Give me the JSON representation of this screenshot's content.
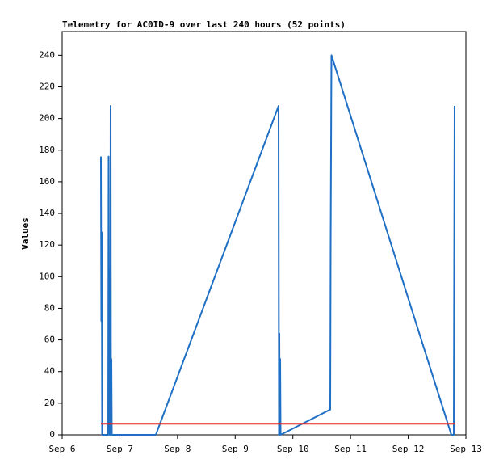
{
  "chart_data": {
    "type": "line",
    "title": "Telemetry for AC0ID-9 over last 240 hours (52 points)",
    "y_label": "Values",
    "x": [],
    "series": [
      {
        "color": "#1f6fc4",
        "x": [
          0.672,
          0.679,
          0.686,
          0.693,
          0.798,
          0.805,
          0.812,
          0.826,
          0.833,
          0.84,
          0.847,
          0.854,
          0.861,
          1.624,
          3.752,
          3.759,
          3.766,
          3.773,
          3.78,
          3.787,
          4.648,
          4.655,
          4.669,
          6.748,
          6.79,
          6.804
        ],
        "values": [
          176,
          72,
          128,
          0,
          0,
          176,
          0,
          104,
          0,
          208,
          0,
          48,
          0,
          0,
          208,
          0,
          64,
          0,
          48,
          0,
          16,
          120,
          240,
          0,
          0,
          208
        ]
      },
      {
        "color": "#e8231f",
        "x": [
          0.672,
          6.804
        ],
        "values": [
          7,
          7
        ]
      }
    ],
    "xlim": [
      0,
      7
    ],
    "xticks": [
      {
        "value": 0,
        "label": "Sep 6"
      },
      {
        "value": 1,
        "label": "Sep 7"
      },
      {
        "value": 2,
        "label": "Sep 8"
      },
      {
        "value": 3,
        "label": "Sep 9"
      },
      {
        "value": 4,
        "label": "Sep 10"
      },
      {
        "value": 5,
        "label": "Sep 11"
      },
      {
        "value": 6,
        "label": "Sep 12"
      },
      {
        "value": 7,
        "label": "Sep 13"
      }
    ],
    "ylim": [
      0,
      255
    ],
    "yticks": [
      0,
      20,
      40,
      60,
      80,
      100,
      120,
      140,
      160,
      180,
      200,
      220,
      240
    ]
  }
}
